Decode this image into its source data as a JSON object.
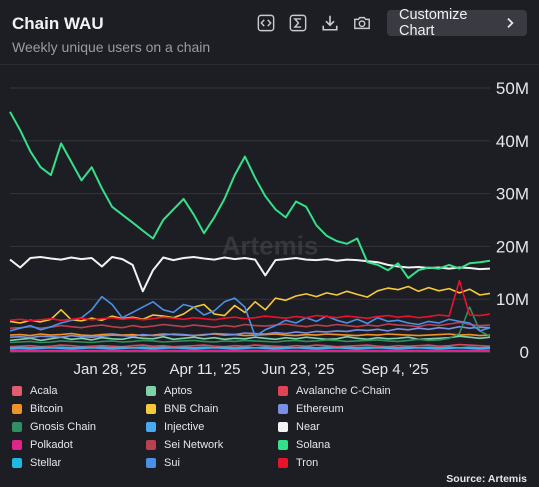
{
  "header": {
    "title": "Chain WAU",
    "subtitle": "Weekly unique users on a chain",
    "customize_label": "Customize Chart",
    "icons": [
      "embed-icon",
      "sigma-icon",
      "download-icon",
      "camera-icon"
    ]
  },
  "watermark": "Artemis",
  "source_label": "Source: Artemis",
  "chart_data": {
    "type": "line",
    "title": "Chain WAU",
    "subtitle": "Weekly unique users on a chain",
    "ylim": [
      0,
      50000000
    ],
    "y_ticks": [
      "0",
      "10M",
      "20M",
      "30M",
      "40M",
      "50M"
    ],
    "x_ticks": [
      "Jan 28, '25",
      "Apr 11, '25",
      "Jun 23, '25",
      "Sep 4, '25"
    ],
    "grid": true,
    "legend_position": "bottom",
    "series": [
      {
        "name": "Acala",
        "color": "#e05c6e",
        "values": [
          0.2,
          0.2,
          0.2,
          0.2,
          0.2,
          0.2,
          0.2,
          0.2,
          0.2,
          0.2,
          0.2,
          0.2,
          0.2,
          0.2,
          0.2,
          0.2,
          0.2,
          0.2,
          0.2,
          0.2,
          0.2,
          0.2,
          0.2,
          0.2,
          0.2,
          0.2,
          0.2,
          0.2,
          0.2,
          0.2,
          0.2,
          0.2,
          0.2,
          0.2,
          0.2,
          0.2,
          0.2,
          0.2,
          0.2,
          0.2,
          0.2,
          0.2,
          0.2,
          0.2,
          0.2,
          0.2,
          0.2,
          0.2
        ]
      },
      {
        "name": "Aptos",
        "color": "#7fd1a8",
        "values": [
          2.2,
          2.4,
          2.6,
          2.2,
          2.5,
          2.8,
          2.4,
          2.6,
          2.3,
          2.7,
          2.5,
          2.4,
          2.8,
          2.6,
          2.5,
          2.9,
          2.4,
          2.6,
          2.8,
          2.5,
          2.7,
          2.4,
          2.6,
          2.5,
          2.8,
          2.6,
          2.4,
          2.7,
          2.5,
          2.8,
          2.6,
          2.4,
          2.5,
          2.9,
          2.6,
          2.4,
          2.7,
          2.5,
          2.6,
          2.8,
          2.4,
          2.5,
          2.6,
          2.7,
          3.0,
          2.8,
          2.6,
          2.8
        ]
      },
      {
        "name": "Avalanche C-Chain",
        "color": "#e04455",
        "values": [
          1.0,
          1.1,
          1.2,
          1.0,
          1.1,
          1.3,
          1.2,
          1.0,
          1.1,
          1.2,
          1.1,
          1.0,
          1.2,
          1.3,
          1.1,
          1.2,
          1.0,
          1.1,
          1.2,
          1.3,
          1.1,
          1.0,
          1.2,
          1.1,
          1.3,
          1.2,
          1.1,
          1.0,
          1.2,
          1.1,
          1.3,
          1.2,
          1.0,
          1.1,
          1.2,
          1.3,
          1.1,
          1.0,
          1.2,
          1.1,
          1.2,
          1.3,
          1.1,
          1.2,
          1.4,
          1.3,
          1.2,
          1.1
        ]
      },
      {
        "name": "Bitcoin",
        "color": "#f0922a",
        "values": [
          3.2,
          3.3,
          3.1,
          3.4,
          3.2,
          3.3,
          3.5,
          3.2,
          3.1,
          3.3,
          3.4,
          3.2,
          3.3,
          3.1,
          3.2,
          3.4,
          3.3,
          3.2,
          3.1,
          3.3,
          3.4,
          3.2,
          3.3,
          3.1,
          3.2,
          3.3,
          3.4,
          3.2,
          3.1,
          3.3,
          3.2,
          3.4,
          3.3,
          3.2,
          3.1,
          3.3,
          3.2,
          3.4,
          3.3,
          3.2,
          3.1,
          3.2,
          3.3,
          3.4,
          3.2,
          3.3,
          3.1,
          3.2
        ]
      },
      {
        "name": "BNB Chain",
        "color": "#f5c93a",
        "values": [
          5.8,
          5.5,
          6.0,
          5.7,
          6.2,
          8.0,
          6.1,
          5.9,
          6.4,
          6.0,
          6.8,
          6.3,
          6.6,
          6.2,
          7.0,
          6.8,
          6.5,
          7.2,
          8.5,
          9.0,
          7.2,
          6.9,
          8.8,
          7.5,
          9.5,
          8.0,
          10.2,
          9.8,
          10.6,
          11.0,
          10.5,
          11.2,
          10.8,
          11.5,
          10.9,
          10.4,
          11.6,
          12.1,
          11.8,
          12.4,
          11.5,
          12.2,
          11.6,
          12.0,
          11.2,
          11.9,
          10.8,
          11.1
        ]
      },
      {
        "name": "Ethereum",
        "color": "#7b8fe0",
        "values": [
          2.8,
          2.9,
          2.7,
          3.0,
          2.9,
          2.8,
          3.1,
          2.9,
          2.8,
          3.0,
          3.2,
          3.1,
          3.0,
          3.3,
          3.1,
          3.2,
          3.4,
          3.3,
          3.1,
          3.2,
          3.5,
          3.4,
          3.3,
          3.6,
          3.5,
          3.4,
          3.7,
          3.5,
          3.8,
          3.6,
          3.9,
          3.8,
          4.0,
          3.9,
          4.2,
          4.1,
          4.3,
          4.0,
          4.4,
          4.2,
          4.5,
          4.3,
          4.6,
          4.4,
          4.8,
          4.5,
          4.7,
          4.6
        ]
      },
      {
        "name": "Gnosis Chain",
        "color": "#2e8f60",
        "values": [
          1.8,
          1.9,
          2.0,
          1.8,
          1.9,
          2.1,
          2.0,
          1.9,
          1.8,
          2.0,
          2.1,
          1.9,
          2.0,
          2.2,
          2.1,
          1.9,
          2.0,
          2.1,
          2.2,
          2.0,
          1.9,
          2.1,
          2.0,
          2.2,
          2.1,
          2.0,
          1.9,
          2.1,
          2.2,
          2.0,
          2.1,
          2.3,
          2.2,
          2.0,
          2.1,
          2.2,
          2.3,
          2.1,
          2.0,
          2.2,
          2.4,
          2.2,
          2.3,
          2.6,
          3.5,
          8.5,
          4.0,
          3.0
        ]
      },
      {
        "name": "Injective",
        "color": "#4aa8f0",
        "values": [
          0.6,
          0.7,
          0.6,
          0.7,
          0.8,
          0.7,
          0.6,
          0.7,
          0.8,
          0.7,
          0.6,
          0.7,
          0.8,
          0.7,
          0.6,
          0.7,
          0.8,
          0.7,
          0.6,
          0.7,
          0.8,
          0.7,
          0.6,
          0.7,
          0.8,
          0.7,
          0.6,
          0.7,
          0.8,
          0.7,
          0.6,
          0.7,
          0.8,
          0.7,
          0.6,
          0.7,
          0.8,
          0.7,
          0.6,
          0.7,
          0.8,
          0.7,
          0.6,
          0.7,
          0.8,
          0.7,
          0.6,
          0.7
        ]
      },
      {
        "name": "Near",
        "color": "#f2f2f2",
        "values": [
          17.5,
          16.0,
          17.8,
          18.0,
          17.7,
          17.5,
          17.9,
          17.6,
          17.8,
          16.2,
          18.0,
          17.6,
          16.5,
          11.5,
          15.5,
          17.9,
          17.4,
          17.8,
          18.0,
          17.7,
          17.5,
          17.9,
          17.6,
          17.8,
          17.5,
          14.5,
          17.4,
          17.6,
          17.8,
          17.5,
          17.4,
          17.6,
          17.3,
          17.5,
          17.4,
          17.2,
          17.0,
          16.5,
          16.2,
          16.0,
          16.1,
          15.9,
          16.0,
          15.8,
          16.0,
          15.9,
          15.7,
          15.8
        ]
      },
      {
        "name": "Polkadot",
        "color": "#e0248a",
        "values": [
          0.3,
          0.3,
          0.3,
          0.3,
          0.3,
          0.3,
          0.3,
          0.3,
          0.3,
          0.3,
          0.3,
          0.3,
          0.3,
          0.3,
          0.3,
          0.3,
          0.3,
          0.3,
          0.3,
          0.3,
          0.3,
          0.3,
          0.3,
          0.3,
          0.3,
          0.3,
          0.3,
          0.3,
          0.3,
          0.3,
          0.3,
          0.3,
          0.3,
          0.3,
          0.3,
          0.3,
          0.3,
          0.3,
          0.3,
          0.3,
          0.3,
          0.3,
          0.3,
          0.3,
          0.3,
          0.3,
          0.3,
          0.3
        ]
      },
      {
        "name": "Sei Network",
        "color": "#b84050",
        "values": [
          4.5,
          4.6,
          4.8,
          4.5,
          4.7,
          5.0,
          4.8,
          4.6,
          4.9,
          5.1,
          4.8,
          4.6,
          5.0,
          4.7,
          4.9,
          5.2,
          5.0,
          4.8,
          5.1,
          4.9,
          4.7,
          5.0,
          4.8,
          5.2,
          5.0,
          4.9,
          5.1,
          5.3,
          5.0,
          4.8,
          5.1,
          4.9,
          5.2,
          5.0,
          4.8,
          5.1,
          4.9,
          5.3,
          5.1,
          5.0,
          4.8,
          5.2,
          5.0,
          5.3,
          5.6,
          5.2,
          5.0,
          5.1
        ]
      },
      {
        "name": "Solana",
        "color": "#35e08a",
        "values": [
          45.5,
          42.0,
          38.0,
          35.0,
          33.5,
          39.5,
          36.0,
          32.5,
          35.0,
          31.0,
          27.5,
          26.0,
          24.5,
          23.0,
          21.5,
          25.0,
          27.0,
          29.0,
          26.0,
          22.5,
          25.5,
          29.0,
          33.5,
          37.0,
          33.0,
          29.5,
          27.0,
          25.5,
          28.5,
          27.5,
          24.0,
          22.0,
          21.0,
          20.5,
          21.5,
          17.0,
          16.5,
          15.5,
          16.8,
          14.0,
          15.5,
          16.0,
          15.8,
          16.5,
          15.8,
          16.8,
          17.0,
          17.3
        ]
      },
      {
        "name": "Stellar",
        "color": "#1fb8e0",
        "values": [
          0.8,
          0.9,
          0.8,
          0.9,
          0.8,
          0.9,
          0.8,
          0.9,
          0.8,
          0.9,
          0.8,
          0.9,
          0.8,
          0.9,
          0.8,
          0.9,
          0.8,
          0.9,
          0.8,
          0.9,
          0.8,
          0.9,
          0.8,
          0.9,
          0.8,
          0.9,
          0.8,
          0.9,
          0.8,
          0.9,
          0.8,
          0.9,
          0.8,
          0.9,
          0.8,
          0.9,
          0.8,
          0.9,
          0.8,
          0.9,
          0.8,
          0.9,
          0.8,
          0.9,
          0.8,
          0.9,
          0.8,
          0.9
        ]
      },
      {
        "name": "Sui",
        "color": "#4a90e8",
        "values": [
          4.0,
          4.5,
          5.0,
          4.2,
          4.8,
          5.5,
          6.0,
          6.5,
          8.0,
          10.5,
          9.0,
          6.5,
          7.5,
          8.5,
          9.5,
          8.0,
          7.5,
          9.0,
          8.5,
          7.0,
          7.8,
          9.5,
          10.2,
          8.5,
          3.0,
          4.2,
          5.0,
          6.0,
          5.5,
          6.5,
          5.8,
          6.8,
          6.0,
          5.5,
          6.2,
          5.4,
          6.5,
          5.8,
          6.0,
          5.5,
          5.2,
          5.8,
          5.5,
          6.2,
          5.8,
          5.5,
          4.0,
          4.6
        ]
      },
      {
        "name": "Tron",
        "color": "#e8132b",
        "values": [
          6.0,
          6.2,
          5.9,
          6.1,
          6.3,
          6.0,
          6.2,
          6.4,
          6.1,
          6.3,
          6.5,
          6.2,
          6.4,
          6.1,
          6.3,
          6.6,
          6.4,
          6.2,
          6.5,
          6.3,
          6.1,
          6.4,
          6.6,
          6.3,
          6.5,
          6.8,
          6.6,
          6.4,
          6.7,
          6.5,
          6.9,
          6.7,
          6.5,
          6.8,
          6.6,
          6.4,
          6.7,
          6.9,
          6.6,
          6.8,
          6.5,
          6.7,
          7.0,
          6.8,
          13.5,
          7.0,
          6.9,
          7.2
        ]
      }
    ]
  }
}
